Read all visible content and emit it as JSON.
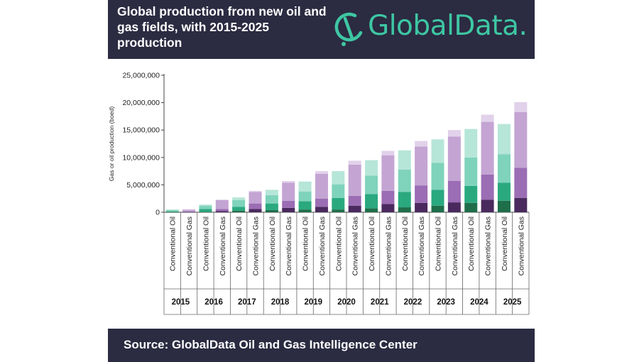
{
  "header": {
    "title": "Global production from new oil and gas fields, with 2015-2025 production",
    "logo_text": "GlobalData."
  },
  "footer": {
    "source": "Source:  GlobalData Oil and Gas Intelligence Center"
  },
  "colors": {
    "header_bg": "#2b2b42",
    "brand": "#3ec7a3",
    "oil": [
      "#1f6e4a",
      "#2aa97f",
      "#7fd3bb",
      "#b6e6d8"
    ],
    "gas": [
      "#4a2a5e",
      "#9b6db4",
      "#c3a4d3",
      "#e1d1ea"
    ]
  },
  "chart_data": {
    "type": "bar",
    "stacked": true,
    "ylabel": "Gas or oil production (boed)",
    "ylim": [
      0,
      25000000
    ],
    "yticks": [
      "0",
      "5,000,000",
      "10,000,000",
      "15,000,000",
      "20,000,000",
      "25,000,000"
    ],
    "years": [
      "2015",
      "2016",
      "2017",
      "2018",
      "2019",
      "2020",
      "2021",
      "2022",
      "2023",
      "2024",
      "2025"
    ],
    "categories": [
      "Conventional Oil",
      "Conventional Gas"
    ],
    "bars": [
      {
        "year": "2015",
        "category": "Conventional Oil",
        "segments": [
          50000,
          100000,
          300000,
          0
        ]
      },
      {
        "year": "2015",
        "category": "Conventional Gas",
        "segments": [
          50000,
          100000,
          300000,
          100000
        ]
      },
      {
        "year": "2016",
        "category": "Conventional Oil",
        "segments": [
          100000,
          500000,
          600000,
          200000
        ]
      },
      {
        "year": "2016",
        "category": "Conventional Gas",
        "segments": [
          200000,
          400000,
          1600000,
          100000
        ]
      },
      {
        "year": "2017",
        "category": "Conventional Oil",
        "segments": [
          300000,
          700000,
          1200000,
          500000
        ]
      },
      {
        "year": "2017",
        "category": "Conventional Gas",
        "segments": [
          600000,
          1000000,
          2100000,
          200000
        ]
      },
      {
        "year": "2018",
        "category": "Conventional Oil",
        "segments": [
          400000,
          1200000,
          1500000,
          1000000
        ]
      },
      {
        "year": "2018",
        "category": "Conventional Gas",
        "segments": [
          800000,
          1300000,
          3300000,
          300000
        ]
      },
      {
        "year": "2019",
        "category": "Conventional Oil",
        "segments": [
          500000,
          1500000,
          1800000,
          1800000
        ]
      },
      {
        "year": "2019",
        "category": "Conventional Gas",
        "segments": [
          1000000,
          1500000,
          4500000,
          500000
        ]
      },
      {
        "year": "2020",
        "category": "Conventional Oil",
        "segments": [
          500000,
          2100000,
          2500000,
          2400000
        ]
      },
      {
        "year": "2020",
        "category": "Conventional Gas",
        "segments": [
          1200000,
          1800000,
          5700000,
          700000
        ]
      },
      {
        "year": "2021",
        "category": "Conventional Oil",
        "segments": [
          700000,
          2600000,
          3400000,
          2800000
        ]
      },
      {
        "year": "2021",
        "category": "Conventional Gas",
        "segments": [
          1500000,
          2400000,
          6500000,
          800000
        ]
      },
      {
        "year": "2022",
        "category": "Conventional Oil",
        "segments": [
          900000,
          2800000,
          4100000,
          3500000
        ]
      },
      {
        "year": "2022",
        "category": "Conventional Gas",
        "segments": [
          1700000,
          3200000,
          7100000,
          1000000
        ]
      },
      {
        "year": "2023",
        "category": "Conventional Oil",
        "segments": [
          1200000,
          2900000,
          4900000,
          4300000
        ]
      },
      {
        "year": "2023",
        "category": "Conventional Gas",
        "segments": [
          1800000,
          3900000,
          8100000,
          1200000
        ]
      },
      {
        "year": "2024",
        "category": "Conventional Oil",
        "segments": [
          1700000,
          3100000,
          5200000,
          5200000
        ]
      },
      {
        "year": "2024",
        "category": "Conventional Gas",
        "segments": [
          2300000,
          4600000,
          9600000,
          1300000
        ]
      },
      {
        "year": "2025",
        "category": "Conventional Oil",
        "segments": [
          2100000,
          3300000,
          5200000,
          5500000
        ]
      },
      {
        "year": "2025",
        "category": "Conventional Gas",
        "segments": [
          2600000,
          5500000,
          10200000,
          1800000
        ]
      }
    ]
  }
}
